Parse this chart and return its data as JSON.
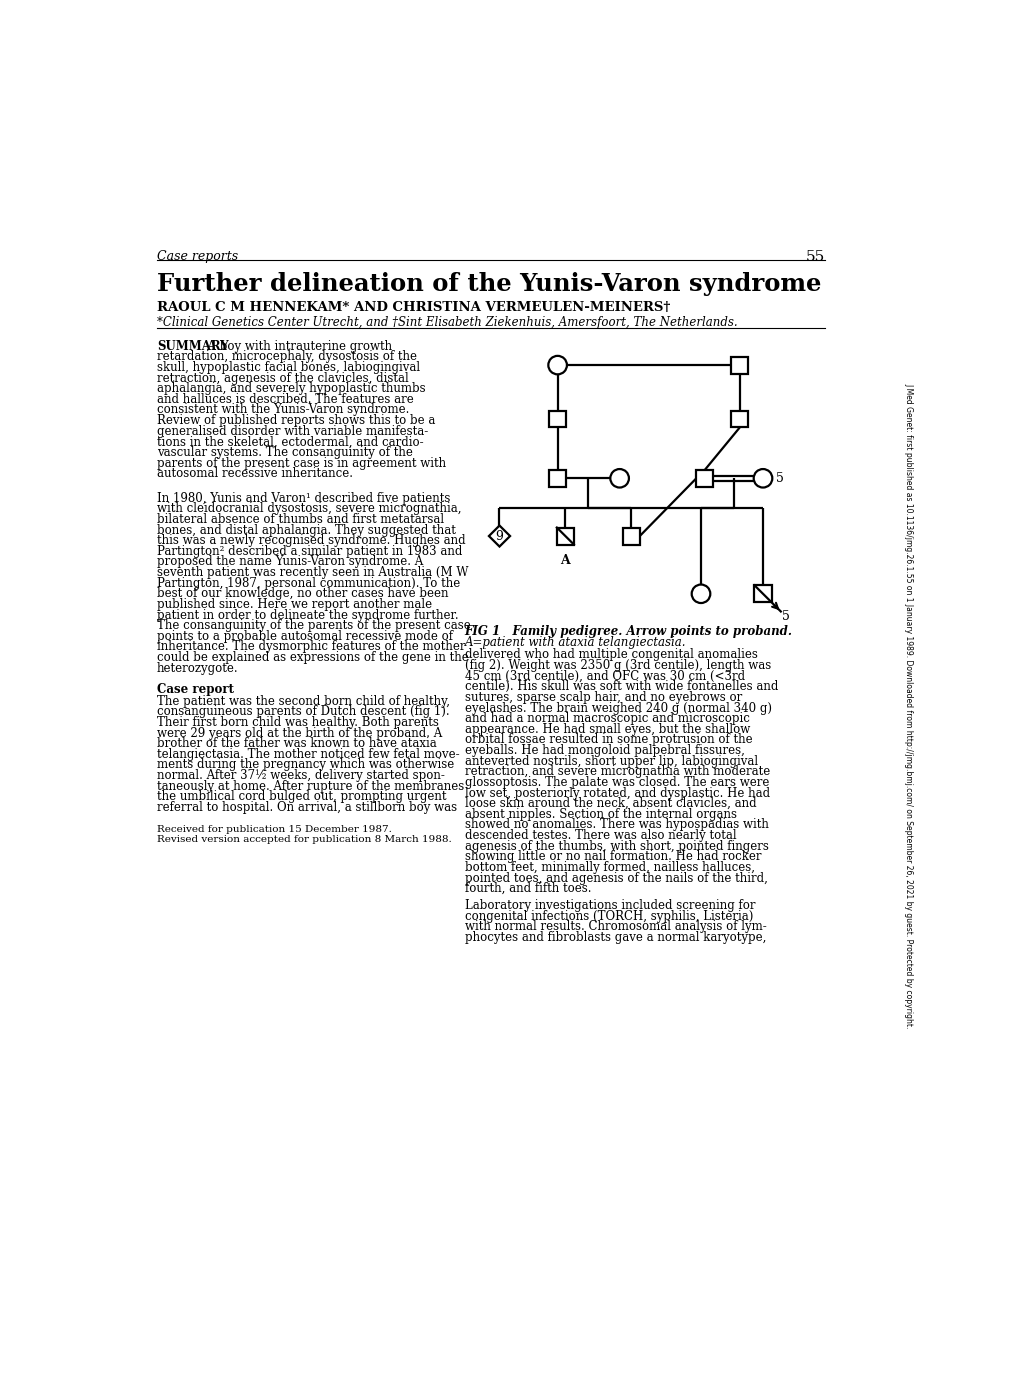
{
  "title": "Further delineation of the Yunis-Varon syndrome",
  "case_reports_label": "Case reports",
  "page_number": "55",
  "authors": "RAOUL C M HENNEKAM* AND CHRISTINA VERMEULEN-MEINERS†",
  "affiliations": "*Clinical Genetics Center Utrecht, and †Sint Elisabeth Ziekenhuis, Amersfoort, The Netherlands.",
  "summary_lines": [
    [
      "bold",
      "summary",
      "  A boy with intrauterine growth"
    ],
    [
      "",
      "",
      "retardation, microcephaly, dysostosis of the"
    ],
    [
      "",
      "",
      "skull, hypoplastic facial bones, labiogingival"
    ],
    [
      "",
      "",
      "retraction, agenesis of the clavicles, distal"
    ],
    [
      "",
      "",
      "aphalangia, and severely hypoplastic thumbs"
    ],
    [
      "",
      "",
      "and halluces is described. The features are"
    ],
    [
      "",
      "",
      "consistent with the Yunis-Varon syndrome."
    ],
    [
      "",
      "",
      "Review of published reports shows this to be a"
    ],
    [
      "",
      "",
      "generalised disorder with variable manifesta-"
    ],
    [
      "",
      "",
      "tions in the skeletal, ectodermal, and cardio-"
    ],
    [
      "",
      "",
      "vascular systems. The consanguinity of the"
    ],
    [
      "",
      "",
      "parents of the present case is in agreement with"
    ],
    [
      "",
      "",
      "autosomal recessive inheritance."
    ]
  ],
  "section1_lines": [
    "In 1980, Yunis and Varon¹ described five patients",
    "with cleidocranial dysostosis, severe micrognathia,",
    "bilateral absence of thumbs and first metatarsal",
    "bones, and distal aphalangia. They suggested that",
    "this was a newly recognised syndrome. Hughes and",
    "Partington² described a similar patient in 1983 and",
    "proposed the name Yunis-Varon syndrome. A",
    "seventh patient was recently seen in Australia (M W",
    "Partington, 1987, personal communication). To the",
    "best of our knowledge, no other cases have been",
    "published since. Here we report another male",
    "patient in order to delineate the syndrome further.",
    "The consanguinity of the parents of the present case",
    "points to a probable autosomal recessive mode of",
    "inheritance. The dysmorphic features of the mother",
    "could be explained as expressions of the gene in the",
    "heterozygote."
  ],
  "case_report_header": "Case report",
  "case_report_lines": [
    "The patient was the second born child of healthy,",
    "consanguineous parents of Dutch descent (fig 1).",
    "Their first born child was healthy. Both parents",
    "were 29 years old at the birth of the proband. A",
    "brother of the father was known to have ataxia",
    "telangiectasia. The mother noticed few fetal move-",
    "ments during the pregnancy which was otherwise",
    "normal. After 37½ weeks, delivery started spon-",
    "taneously at home. After rupture of the membranes",
    "the umbilical cord bulged out, prompting urgent",
    "referral to hospital. On arrival, a stillborn boy was"
  ],
  "received_lines": [
    "Received for publication 15 December 1987.",
    "Revised version accepted for publication 8 March 1988."
  ],
  "fig_caption_line1": "FIG 1   Family pedigree. Arrow points to proband.",
  "fig_caption_line2": "A=patient with ataxia telangiectasia.",
  "right_col_lines": [
    "delivered who had multiple congenital anomalies",
    "(fig 2). Weight was 2350 g (3rd centile), length was",
    "45 cm (3rd centile), and OFC was 30 cm (<3rd",
    "centile). His skull was soft with wide fontanelles and",
    "sutures, sparse scalp hair, and no eyebrows or",
    "eyelashes. The brain weighed 240 g (normal 340 g)",
    "and had a normal macroscopic and microscopic",
    "appearance. He had small eyes, but the shallow",
    "orbital fossae resulted in some protrusion of the",
    "eyeballs. He had mongoloid palpebral fissures,",
    "anteverted nostrils, short upper lip, labiogingival",
    "retraction, and severe micrognathia with moderate",
    "glossoptosis. The palate was closed. The ears were",
    "low set, posteriorly rotated, and dysplastic. He had",
    "loose skin around the neck, absent clavicles, and",
    "absent nipples. Section of the internal organs",
    "showed no anomalies. There was hypospadias with",
    "descended testes. There was also nearly total",
    "agenesis of the thumbs, with short, pointed fingers",
    "showing little or no nail formation. He had rocker",
    "bottom feet, minimally formed, nailless halluces,",
    "pointed toes, and agenesis of the nails of the third,",
    "fourth, and fifth toes."
  ],
  "lab_lines": [
    "Laboratory investigations included screening for",
    "congenital infections (TORCH, syphilis, Listeria)",
    "with normal results. Chromosomal analysis of lym-",
    "phocytes and fibroblasts gave a normal karyotype,"
  ],
  "side_text": "J Med Genet: first published as 10.1136/jmg.26.1.55 on 1 January 1989. Downloaded from http://jmg.bmj.com/ on September 26, 2021 by guest. Protected by copyright.",
  "background_color": "#ffffff"
}
